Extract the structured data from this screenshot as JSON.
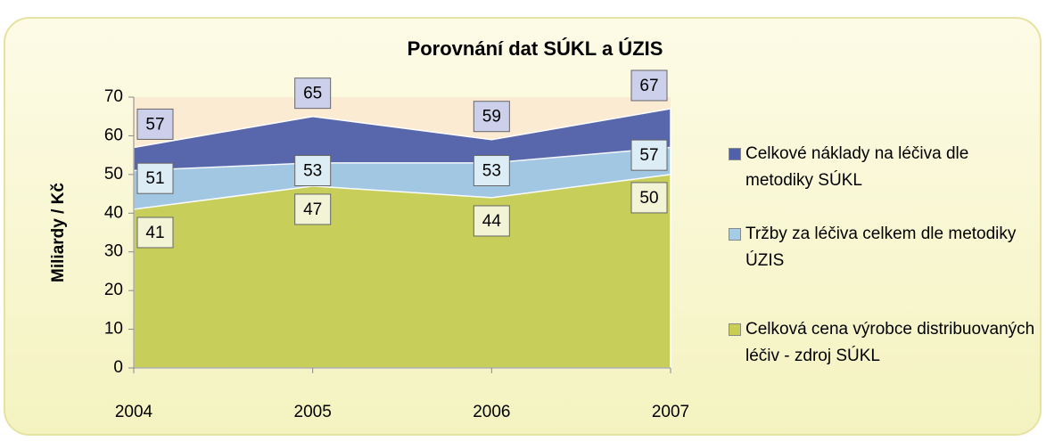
{
  "chart_data": {
    "type": "area",
    "title": "Porovnání dat SÚKL a ÚZIS",
    "y_label": "Miliardy / Kč",
    "categories": [
      "2004",
      "2005",
      "2006",
      "2007"
    ],
    "series": [
      {
        "name": "Celkové náklady na léčiva dle metodiky SÚKL",
        "color": "#5060aa",
        "values": [
          57,
          65,
          59,
          67
        ]
      },
      {
        "name": "Tržby za léčiva celkem dle metodiky ÚZIS",
        "color": "#a6cde6",
        "values": [
          51,
          53,
          53,
          57
        ]
      },
      {
        "name": "Celková cena výrobce distribuovaných léčiv - zdroj SÚKL",
        "color": "#c9cf52",
        "values": [
          41,
          47,
          44,
          50
        ]
      }
    ],
    "ylim": [
      0,
      70
    ],
    "yticks": [
      0,
      10,
      20,
      30,
      40,
      50,
      60,
      70
    ],
    "legend": "right"
  }
}
